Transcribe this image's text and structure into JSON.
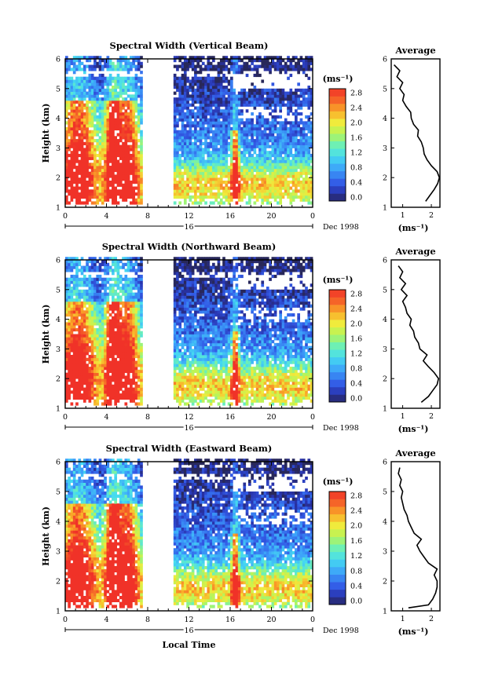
{
  "figure": {
    "date_label": "Dec 1998",
    "day_label": "16",
    "xlabel_bottom": "Local Time",
    "colorbar_unit": "(ms⁻¹)",
    "profile_unit": "(ms⁻¹)",
    "profile_title": "Average"
  },
  "chart_data": [
    {
      "type": "heatmap",
      "title": "Spectral Width (Vertical Beam)",
      "ylabel": "Height (km)",
      "x_ticks": [
        "0",
        "4",
        "8",
        "12",
        "16",
        "20",
        "0"
      ],
      "xlim": [
        0,
        24
      ],
      "y_ticks": [
        "1",
        "2",
        "3",
        "4",
        "5",
        "6"
      ],
      "ylim": [
        1,
        6
      ],
      "data_gap_hours": [
        7.5,
        10.5
      ],
      "colorbar": {
        "ticks": [
          "0.0",
          "0.4",
          "0.8",
          "1.2",
          "1.6",
          "2.0",
          "2.4",
          "2.8"
        ],
        "range": [
          0,
          3.0
        ]
      },
      "profile": {
        "title": "Average",
        "x_ticks": [
          "1",
          "2"
        ],
        "xlim": [
          0.6,
          2.3
        ],
        "y_ticks": [
          "1",
          "2",
          "3",
          "4",
          "5",
          "6"
        ],
        "heights": [
          1.2,
          1.4,
          1.6,
          1.8,
          2.0,
          2.2,
          2.4,
          2.6,
          2.8,
          3.0,
          3.2,
          3.4,
          3.6,
          3.8,
          4.0,
          4.2,
          4.4,
          4.6,
          4.8,
          5.0,
          5.2,
          5.4,
          5.6,
          5.8
        ],
        "widths": [
          1.8,
          1.95,
          2.1,
          2.22,
          2.28,
          2.2,
          2.0,
          1.85,
          1.75,
          1.72,
          1.65,
          1.52,
          1.55,
          1.38,
          1.3,
          1.28,
          1.12,
          1.0,
          1.05,
          0.9,
          1.0,
          0.8,
          0.9,
          0.7
        ]
      }
    },
    {
      "type": "heatmap",
      "title": "Spectral Width (Northward Beam)",
      "ylabel": "Height (km)",
      "x_ticks": [
        "0",
        "4",
        "8",
        "12",
        "16",
        "20",
        "0"
      ],
      "xlim": [
        0,
        24
      ],
      "y_ticks": [
        "1",
        "2",
        "3",
        "4",
        "5",
        "6"
      ],
      "ylim": [
        1,
        6
      ],
      "data_gap_hours": [
        7.5,
        10.5
      ],
      "colorbar": {
        "ticks": [
          "0.0",
          "0.4",
          "0.8",
          "1.2",
          "1.6",
          "2.0",
          "2.4",
          "2.8"
        ],
        "range": [
          0,
          3.0
        ]
      },
      "profile": {
        "title": "Average",
        "x_ticks": [
          "1",
          "2"
        ],
        "xlim": [
          0.6,
          2.3
        ],
        "y_ticks": [
          "1",
          "2",
          "3",
          "4",
          "5",
          "6"
        ],
        "heights": [
          1.2,
          1.4,
          1.6,
          1.8,
          2.0,
          2.2,
          2.4,
          2.6,
          2.8,
          3.0,
          3.2,
          3.4,
          3.6,
          3.8,
          4.0,
          4.2,
          4.4,
          4.6,
          4.8,
          5.0,
          5.2,
          5.4,
          5.6,
          5.8
        ],
        "widths": [
          1.65,
          1.9,
          2.05,
          2.2,
          2.25,
          2.1,
          1.9,
          1.72,
          1.85,
          1.6,
          1.55,
          1.42,
          1.38,
          1.25,
          1.3,
          1.15,
          1.1,
          1.0,
          1.15,
          0.95,
          1.1,
          0.9,
          1.0,
          0.85
        ]
      }
    },
    {
      "type": "heatmap",
      "title": "Spectral Width (Eastward Beam)",
      "ylabel": "Height (km)",
      "xlabel": "Local Time",
      "x_ticks": [
        "0",
        "4",
        "8",
        "12",
        "16",
        "20",
        "0"
      ],
      "xlim": [
        0,
        24
      ],
      "y_ticks": [
        "1",
        "2",
        "3",
        "4",
        "5",
        "6"
      ],
      "ylim": [
        1,
        6
      ],
      "data_gap_hours": [
        7.5,
        10.5
      ],
      "colorbar": {
        "ticks": [
          "0.0",
          "0.4",
          "0.8",
          "1.2",
          "1.6",
          "2.0",
          "2.4",
          "2.8"
        ],
        "range": [
          0,
          3.0
        ]
      },
      "profile": {
        "title": "Average",
        "x_ticks": [
          "1",
          "2"
        ],
        "xlim": [
          0.6,
          2.3
        ],
        "y_ticks": [
          "1",
          "2",
          "3",
          "4",
          "5",
          "6"
        ],
        "heights": [
          1.1,
          1.2,
          1.4,
          1.6,
          1.8,
          2.0,
          2.2,
          2.4,
          2.6,
          2.8,
          3.0,
          3.2,
          3.4,
          3.6,
          3.8,
          4.0,
          4.2,
          4.4,
          4.6,
          4.8,
          5.0,
          5.2,
          5.4,
          5.6,
          5.8
        ],
        "widths": [
          1.2,
          1.9,
          2.05,
          2.15,
          2.2,
          2.2,
          2.1,
          2.2,
          1.9,
          1.75,
          1.6,
          1.5,
          1.65,
          1.4,
          1.3,
          1.2,
          1.15,
          1.05,
          1.0,
          0.95,
          1.0,
          0.9,
          0.95,
          0.85,
          0.9
        ]
      }
    }
  ]
}
